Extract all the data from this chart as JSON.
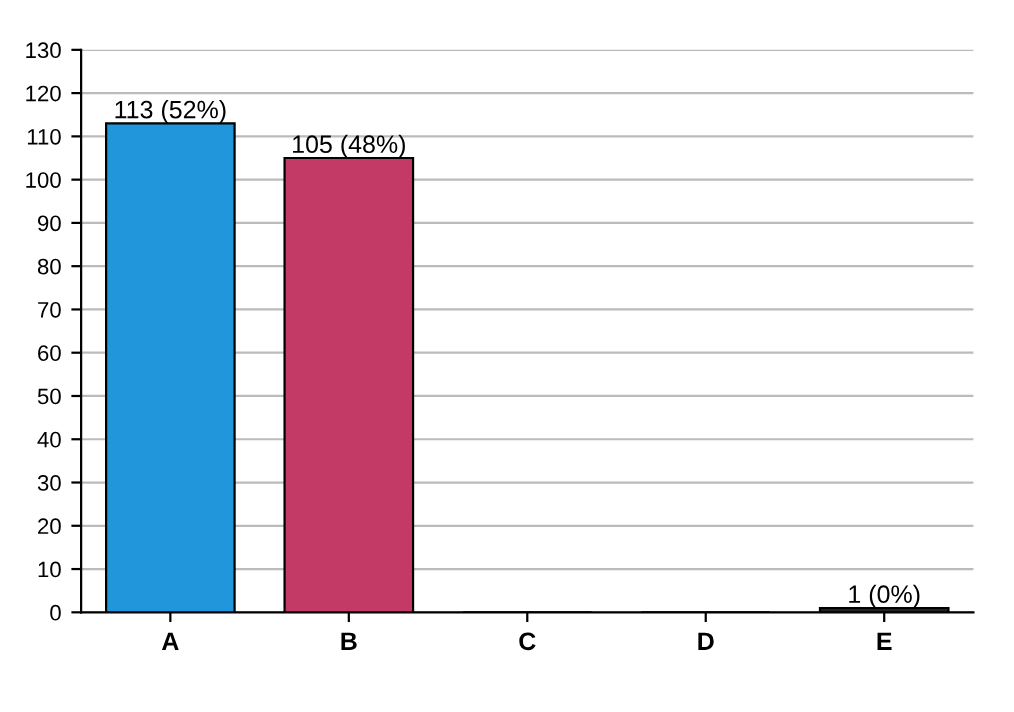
{
  "chart_data": {
    "type": "bar",
    "categories": [
      "A",
      "B",
      "C",
      "D",
      "E"
    ],
    "values": [
      113,
      105,
      0,
      0,
      1
    ],
    "colors": [
      "#2196db",
      "#c43a66",
      "#888888",
      "#888888",
      "#222222"
    ],
    "value_labels": [
      "113 (52%)",
      "105 (48%)",
      null,
      null,
      "1 (0%)"
    ],
    "ylim": [
      0,
      130
    ],
    "yticks": [
      0,
      10,
      20,
      30,
      40,
      50,
      60,
      70,
      80,
      90,
      100,
      110,
      120,
      130
    ],
    "grid": "y",
    "legend": false
  }
}
